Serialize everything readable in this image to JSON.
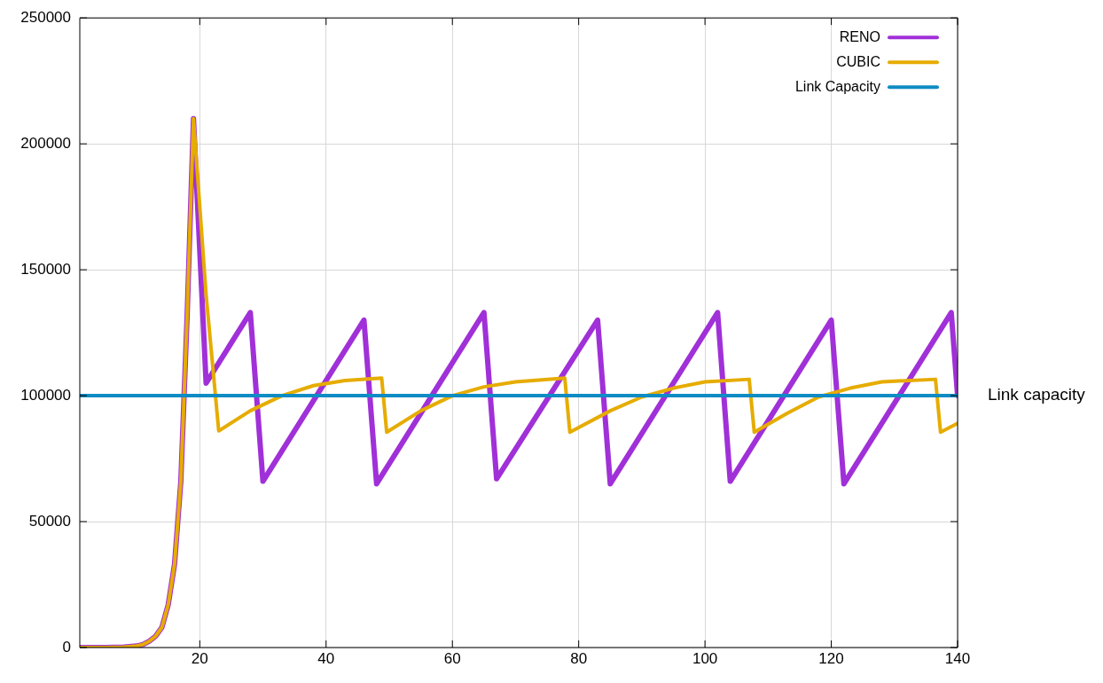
{
  "chart_data": {
    "type": "line",
    "xlim": [
      1,
      140
    ],
    "xticks": [
      20,
      40,
      60,
      80,
      100,
      120,
      140
    ],
    "ylim": [
      0,
      250000
    ],
    "yticks": [
      0,
      50000,
      100000,
      150000,
      200000,
      250000
    ],
    "grid": true,
    "legend": "top right",
    "marker": "none",
    "line_style": "solid",
    "series": [
      {
        "name": "RENO",
        "color": "#a030d8",
        "x": [
          1,
          5,
          8,
          10,
          11,
          12,
          13,
          14,
          15,
          16,
          17,
          18,
          19,
          21,
          28,
          30,
          46,
          48,
          65,
          67,
          83,
          85,
          102,
          104,
          120,
          122,
          139,
          140
        ],
        "values": [
          0,
          0,
          200,
          600,
          1200,
          2500,
          4500,
          8000,
          17000,
          33000,
          66000,
          132000,
          210000,
          105000,
          133000,
          66000,
          130000,
          65000,
          133000,
          67000,
          130000,
          65000,
          133000,
          66000,
          130000,
          65000,
          133000,
          100000
        ]
      },
      {
        "name": "CUBIC",
        "color": "#e6ac00",
        "x": [
          1,
          5,
          8,
          10,
          11,
          12,
          13,
          14,
          15,
          16,
          17,
          18,
          19,
          21,
          23,
          28,
          33,
          38,
          43,
          48.8,
          49.6,
          55,
          60,
          65,
          70,
          77.8,
          78.6,
          85,
          90,
          95,
          100,
          107,
          107.8,
          113,
          118,
          123,
          128,
          136.5,
          137.3,
          140
        ],
        "values": [
          0,
          0,
          200,
          600,
          1200,
          2500,
          4500,
          8000,
          17000,
          33000,
          66000,
          132000,
          210000,
          140000,
          86000,
          94000,
          100000,
          104000,
          106000,
          107000,
          85500,
          94000,
          100000,
          103500,
          105500,
          107000,
          85500,
          94000,
          99500,
          103000,
          105500,
          106500,
          85500,
          93000,
          99500,
          103000,
          105500,
          106500,
          85500,
          89000
        ]
      },
      {
        "name": "Link Capacity",
        "color": "#0f8cc4",
        "x": [
          1,
          140
        ],
        "values": [
          100000,
          100000
        ]
      }
    ],
    "annotations": [
      "Link capacity"
    ]
  }
}
